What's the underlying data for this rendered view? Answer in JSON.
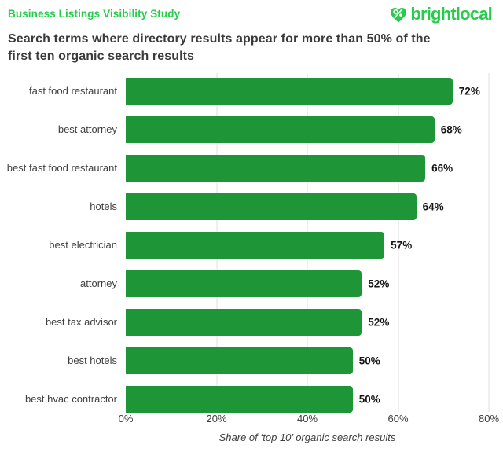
{
  "header": {
    "study_label": "Business Listings Visibility Study",
    "brand": "brightlocal",
    "brand_color": "#27CC4C",
    "logo_icon": "percent-pin-icon"
  },
  "title": "Search terms where directory results appear for more than 50% of the first ten organic search results",
  "title_lines": [
    "Search terms where directory results appear for more than 50% of the",
    "first ten organic search results"
  ],
  "chart_data": {
    "type": "bar",
    "orientation": "horizontal",
    "title": "Search terms where directory results appear for more than 50% of the first ten organic search results",
    "categories": [
      "fast food restaurant",
      "best attorney",
      "best fast food restaurant",
      "hotels",
      "best electrician",
      "attorney",
      "best tax advisor",
      "best hotels",
      "best hvac contractor"
    ],
    "values": [
      72,
      68,
      66,
      64,
      57,
      52,
      52,
      50,
      50
    ],
    "value_labels": [
      "72%",
      "68%",
      "66%",
      "64%",
      "57%",
      "52%",
      "52%",
      "50%",
      "50%"
    ],
    "xlabel": "Share of ‘top 10’ organic search results",
    "x_ticks": [
      "0%",
      "20%",
      "40%",
      "60%",
      "80%"
    ],
    "x_tick_values": [
      0,
      20,
      40,
      60,
      80
    ],
    "xlim": [
      0,
      80
    ],
    "grid": true,
    "legend": "none",
    "bar_color": "#1E9638",
    "gridline_color": "#EFEFEF"
  }
}
